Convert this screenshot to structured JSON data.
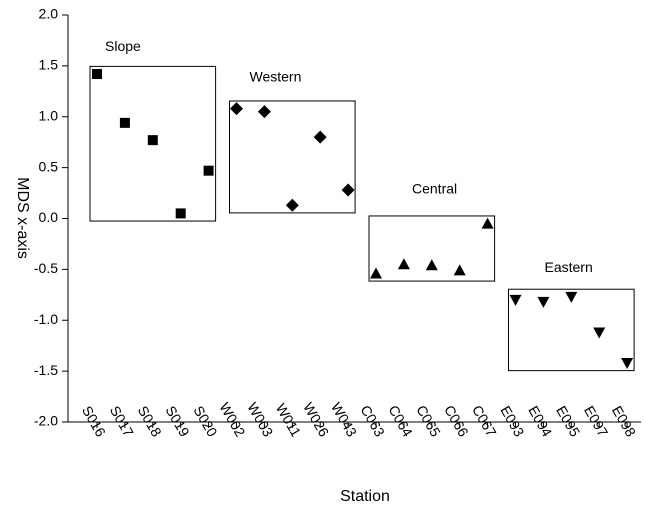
{
  "chart_data": {
    "type": "scatter",
    "x_label": "Station",
    "y_label": "MDS x-axis",
    "categories": [
      "S016",
      "S017",
      "S018",
      "S019",
      "S020",
      "W002",
      "W003",
      "W011",
      "W026",
      "W043",
      "C063",
      "C064",
      "C065",
      "C066",
      "C067",
      "E093",
      "E094",
      "E095",
      "E097",
      "E098"
    ],
    "series": [
      {
        "name": "Slope",
        "marker": "square",
        "color": "#000000",
        "values": [
          1.42,
          0.94,
          0.77,
          0.05,
          0.47,
          null,
          null,
          null,
          null,
          null,
          null,
          null,
          null,
          null,
          null,
          null,
          null,
          null,
          null,
          null
        ]
      },
      {
        "name": "Western",
        "marker": "diamond",
        "color": "#000000",
        "values": [
          null,
          null,
          null,
          null,
          null,
          1.08,
          1.05,
          0.13,
          0.8,
          0.28,
          null,
          null,
          null,
          null,
          null,
          null,
          null,
          null,
          null,
          null
        ]
      },
      {
        "name": "Central",
        "marker": "triangle-up",
        "color": "#000000",
        "values": [
          null,
          null,
          null,
          null,
          null,
          null,
          null,
          null,
          null,
          null,
          -0.54,
          -0.45,
          -0.46,
          -0.51,
          -0.05,
          null,
          null,
          null,
          null,
          null
        ]
      },
      {
        "name": "Eastern",
        "marker": "triangle-down",
        "color": "#000000",
        "values": [
          null,
          null,
          null,
          null,
          null,
          null,
          null,
          null,
          null,
          null,
          null,
          null,
          null,
          null,
          null,
          -0.8,
          -0.82,
          -0.77,
          -1.12,
          -1.42
        ]
      }
    ],
    "ylim": [
      -2,
      2
    ],
    "yticks": [
      {
        "value": -2,
        "label": "-2.0"
      },
      {
        "value": -1.5,
        "label": "-1.5"
      },
      {
        "value": -1,
        "label": "-1.0"
      },
      {
        "value": -0.5,
        "label": "-0.5"
      },
      {
        "value": 0,
        "label": "0.0"
      },
      {
        "value": 0.5,
        "label": "0.5"
      },
      {
        "value": 1,
        "label": "1.0"
      },
      {
        "value": 1.5,
        "label": "1.5"
      },
      {
        "value": 2,
        "label": "2.0"
      }
    ]
  }
}
